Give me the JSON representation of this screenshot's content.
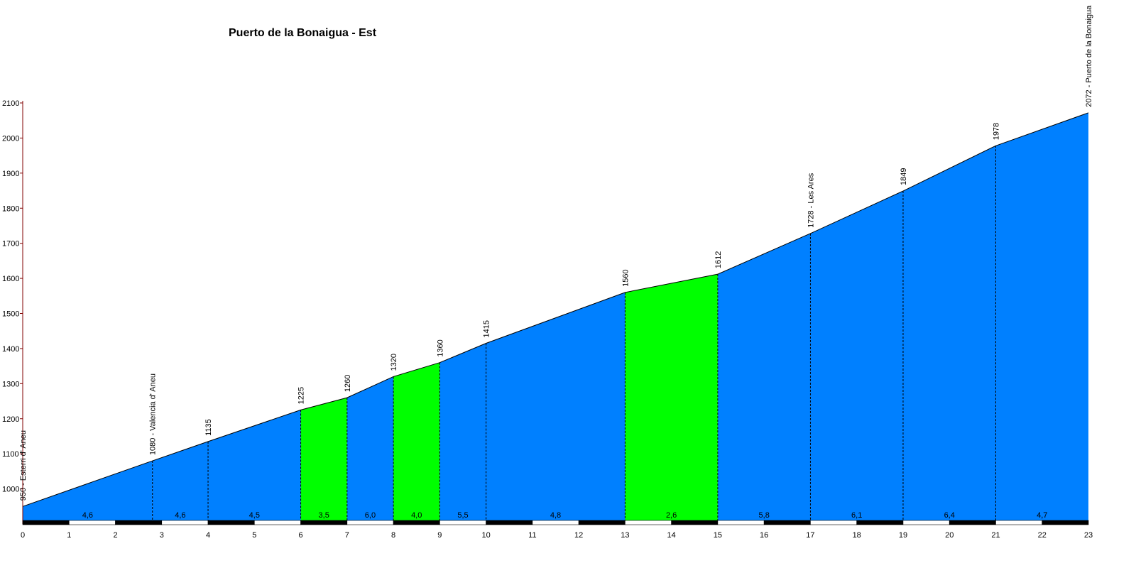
{
  "chart_data": {
    "type": "area",
    "title": "Puerto de la Bonaigua - Est",
    "xlim": [
      0,
      23
    ],
    "ylim": [
      900,
      2100
    ],
    "x_ticks": [
      "0",
      "1",
      "2",
      "3",
      "4",
      "5",
      "6",
      "7",
      "8",
      "9",
      "10",
      "11",
      "12",
      "13",
      "14",
      "15",
      "16",
      "17",
      "18",
      "19",
      "20",
      "21",
      "22",
      "23"
    ],
    "y_ticks": [
      "1000",
      "1100",
      "1200",
      "1300",
      "1400",
      "1500",
      "1600",
      "1700",
      "1800",
      "1900",
      "2000",
      "2100"
    ],
    "profile": [
      {
        "x": 0,
        "y": 950
      },
      {
        "x": 2.8,
        "y": 1080
      },
      {
        "x": 4,
        "y": 1135
      },
      {
        "x": 6,
        "y": 1225
      },
      {
        "x": 7,
        "y": 1260
      },
      {
        "x": 8,
        "y": 1320
      },
      {
        "x": 9,
        "y": 1360
      },
      {
        "x": 10,
        "y": 1415
      },
      {
        "x": 13,
        "y": 1560
      },
      {
        "x": 15,
        "y": 1612
      },
      {
        "x": 17,
        "y": 1728
      },
      {
        "x": 19,
        "y": 1849
      },
      {
        "x": 21,
        "y": 1978
      },
      {
        "x": 23,
        "y": 2072
      }
    ],
    "point_labels": [
      "950 - Esterri d' Aneu",
      "1080 - Valencia d' Aneu",
      "1135",
      "1225",
      "1260",
      "1320",
      "1360",
      "1415",
      "1560",
      "1612",
      "1728 - Les Ares",
      "1849",
      "1978",
      "2072 - Puerto de la Bonaigua"
    ],
    "segments": [
      {
        "from": 0,
        "to": 2.8,
        "gradient": "4,6",
        "color": "#0080ff"
      },
      {
        "from": 2.8,
        "to": 4,
        "gradient": "4,6",
        "color": "#0080ff"
      },
      {
        "from": 4,
        "to": 6,
        "gradient": "4,5",
        "color": "#0080ff"
      },
      {
        "from": 6,
        "to": 7,
        "gradient": "3,5",
        "color": "#00ff00"
      },
      {
        "from": 7,
        "to": 8,
        "gradient": "6,0",
        "color": "#0080ff"
      },
      {
        "from": 8,
        "to": 9,
        "gradient": "4,0",
        "color": "#00ff00"
      },
      {
        "from": 9,
        "to": 10,
        "gradient": "5,5",
        "color": "#0080ff"
      },
      {
        "from": 10,
        "to": 13,
        "gradient": "4,8",
        "color": "#0080ff"
      },
      {
        "from": 13,
        "to": 15,
        "gradient": "2,6",
        "color": "#00ff00"
      },
      {
        "from": 15,
        "to": 17,
        "gradient": "5,8",
        "color": "#0080ff"
      },
      {
        "from": 17,
        "to": 19,
        "gradient": "6,1",
        "color": "#0080ff"
      },
      {
        "from": 19,
        "to": 21,
        "gradient": "6,4",
        "color": "#0080ff"
      },
      {
        "from": 21,
        "to": 23,
        "gradient": "4,7",
        "color": "#0080ff"
      }
    ],
    "colors": {
      "blue": "#0080ff",
      "green": "#00ff00",
      "axis": "#800000"
    }
  }
}
